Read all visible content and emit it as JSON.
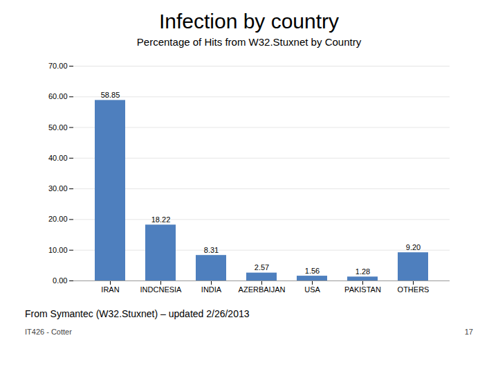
{
  "chart_data": {
    "type": "bar",
    "title": "Infection by country",
    "subtitle": "Percentage of Hits from W32.Stuxnet by Country",
    "categories": [
      "IRAN",
      "INDCNESIA",
      "INDIA",
      "AZERBAIJAN",
      "USA",
      "PAKISTAN",
      "OTHERS"
    ],
    "values": [
      58.85,
      18.22,
      8.31,
      2.57,
      1.56,
      1.28,
      9.2
    ],
    "value_labels": [
      "58.85",
      "18.22",
      "8.31",
      "2.57",
      "1.56",
      "1.28",
      "9.20"
    ],
    "color": "#4e7fbe",
    "ylim": [
      0,
      70
    ],
    "yticks": [
      {
        "value": 0,
        "label": "0.00"
      },
      {
        "value": 10,
        "label": "10.00"
      },
      {
        "value": 20,
        "label": "20.00"
      },
      {
        "value": 30,
        "label": "30.00"
      },
      {
        "value": 40,
        "label": "40.00"
      },
      {
        "value": 50,
        "label": "50.00"
      },
      {
        "value": 60,
        "label": "60.00"
      },
      {
        "value": 70,
        "label": "70.00"
      }
    ],
    "grid": true,
    "data_labels": true,
    "annotations": [
      "From Symantec (W32.Stuxnet) – updated 2/26/2013",
      "IT426 - Cotter",
      "17"
    ]
  }
}
